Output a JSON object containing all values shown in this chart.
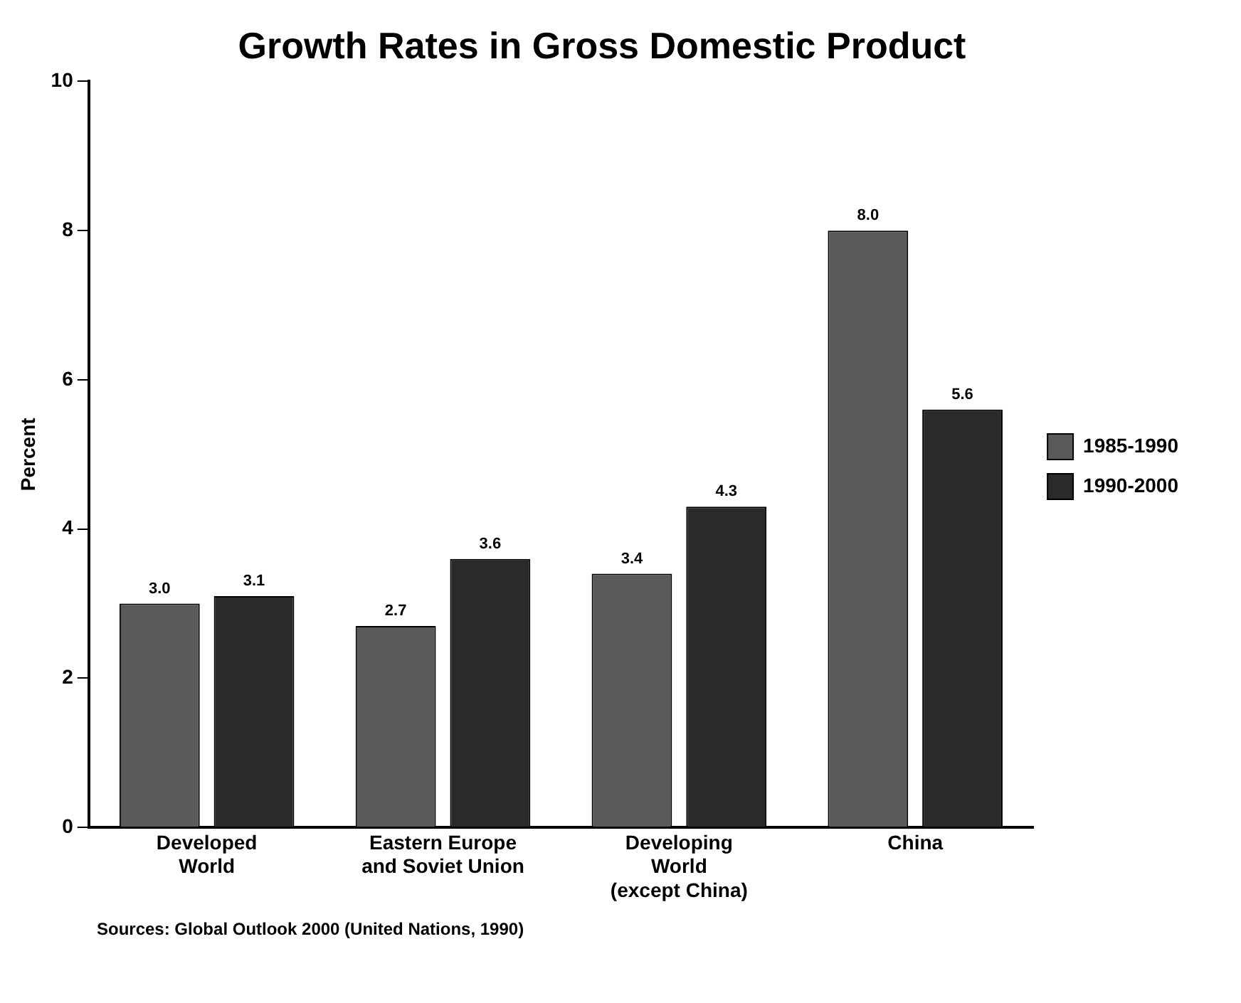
{
  "chart_data": {
    "type": "bar",
    "title": "Growth Rates in Gross Domestic Product",
    "ylabel": "Percent",
    "categories": [
      "Developed\nWorld",
      "Eastern Europe\nand Soviet Union",
      "Developing\nWorld\n(except China)",
      "China"
    ],
    "series": [
      {
        "name": "1985-1990",
        "color": "#5a5a5a",
        "values": [
          3.0,
          2.7,
          3.4,
          8.0
        ],
        "value_labels": [
          "3.0",
          "2.7",
          "3.4",
          "8.0"
        ]
      },
      {
        "name": "1990-2000",
        "color": "#2a2a2a",
        "values": [
          3.1,
          3.6,
          4.3,
          5.6
        ],
        "value_labels": [
          "3.1",
          "3.6",
          "4.3",
          "5.6"
        ]
      }
    ],
    "ylim": [
      0,
      10
    ],
    "yticks": [
      0,
      2,
      4,
      6,
      8,
      10
    ],
    "grid": false,
    "legend": "right",
    "annotations": [
      "Sources: Global Outlook 2000 (United Nations, 1990)"
    ]
  }
}
